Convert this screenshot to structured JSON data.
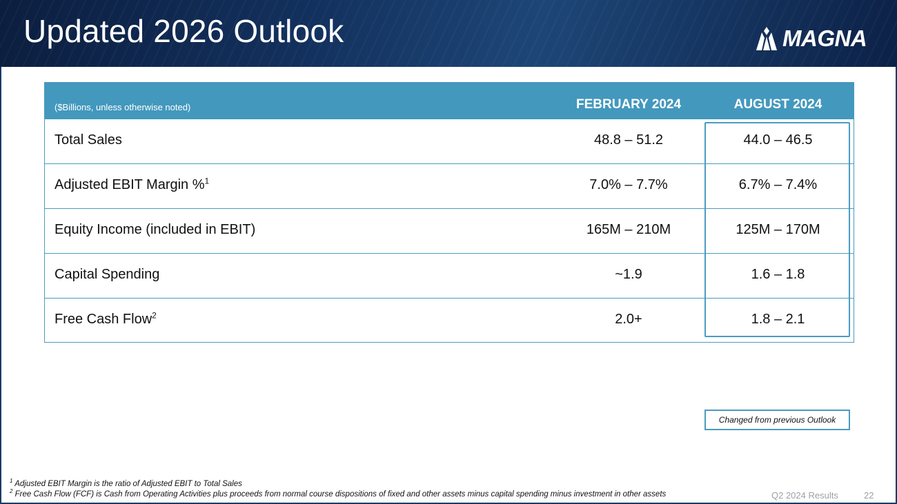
{
  "header": {
    "title": "Updated 2026 Outlook",
    "logo_text": "MAGNA"
  },
  "table": {
    "note": "($Billions, unless otherwise noted)",
    "columns": [
      "FEBRUARY 2024",
      "AUGUST 2024"
    ],
    "rows": [
      {
        "label": "Total Sales",
        "sup": "",
        "feb": "48.8 – 51.2",
        "aug": "44.0 – 46.5"
      },
      {
        "label": "Adjusted EBIT Margin %",
        "sup": "1",
        "feb": "7.0% – 7.7%",
        "aug": "6.7% – 7.4%"
      },
      {
        "label": "Equity Income (included in EBIT)",
        "sup": "",
        "feb": "165M – 210M",
        "aug": "125M – 170M"
      },
      {
        "label": "Capital Spending",
        "sup": "",
        "feb": "~1.9",
        "aug": "1.6 – 1.8"
      },
      {
        "label": "Free Cash Flow",
        "sup": "2",
        "feb": "2.0+",
        "aug": "1.8 – 2.1"
      }
    ]
  },
  "legend": "Changed from previous Outlook",
  "footnotes": [
    {
      "sup": "1",
      "text": "Adjusted EBIT Margin is the ratio of Adjusted EBIT to Total Sales"
    },
    {
      "sup": "2",
      "text": "Free Cash Flow (FCF) is Cash from Operating Activities plus proceeds from normal course dispositions of fixed and other assets minus capital spending minus investment in other assets"
    }
  ],
  "footer": {
    "label": "Q2 2024 Results",
    "page_number": "22"
  },
  "colors": {
    "header_bg": "#13315e",
    "table_header": "#4398bd",
    "border": "#4a9bbf"
  }
}
